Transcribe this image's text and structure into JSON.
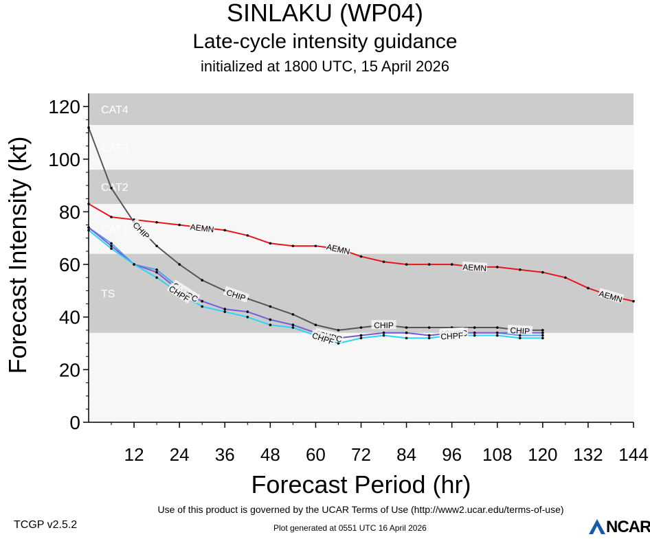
{
  "header": {
    "title": "SINLAKU (WP04)",
    "subtitle": "Late-cycle intensity guidance",
    "init": "initialized at 1800 UTC, 15 April 2026"
  },
  "footer": {
    "version": "TCGP v2.5.2",
    "terms": "Use of this product is governed by the UCAR Terms of Use (http://www2.ucar.edu/terms-of-use)",
    "generated": "Plot generated at 0551 UTC   16 April 2026",
    "logo": "NCAR"
  },
  "chart_data": {
    "type": "line",
    "xlabel": "Forecast Period (hr)",
    "ylabel": "Forecast Intensity (kt)",
    "xlim": [
      0,
      144
    ],
    "ylim": [
      0,
      125
    ],
    "xticks": [
      12,
      24,
      36,
      48,
      60,
      72,
      84,
      96,
      108,
      120,
      132,
      144
    ],
    "yticks": [
      0,
      20,
      40,
      60,
      80,
      100,
      120
    ],
    "grid": false,
    "bands": [
      {
        "label": "TS",
        "from": 34,
        "to": 64,
        "color": "#cccccc"
      },
      {
        "label": "CAT1",
        "from": 64,
        "to": 83,
        "color": "#f7f7f7"
      },
      {
        "label": "CAT2",
        "from": 83,
        "to": 96,
        "color": "#cccccc"
      },
      {
        "label": "CAT3",
        "from": 96,
        "to": 113,
        "color": "#f7f7f7"
      },
      {
        "label": "CAT4",
        "from": 113,
        "to": 125,
        "color": "#cccccc"
      }
    ],
    "background_color": "#f7f7f7",
    "series": [
      {
        "name": "AEMN",
        "color": "#e8141c",
        "x": [
          0,
          6,
          12,
          18,
          24,
          30,
          36,
          42,
          48,
          54,
          60,
          66,
          72,
          78,
          84,
          90,
          96,
          102,
          108,
          114,
          120,
          126,
          132,
          138,
          144
        ],
        "y": [
          83,
          78,
          77,
          76,
          75,
          74,
          73,
          71,
          68,
          67,
          67,
          66,
          63,
          61,
          60,
          60,
          60,
          59,
          59,
          58,
          57,
          55,
          51,
          48,
          46
        ]
      },
      {
        "name": "CHIP",
        "color": "#555555",
        "x": [
          0,
          6,
          12,
          18,
          24,
          30,
          36,
          42,
          48,
          54,
          60,
          66,
          72,
          78,
          84,
          90,
          96,
          102,
          108,
          114,
          120
        ],
        "y": [
          112,
          89,
          76,
          67,
          60,
          54,
          50,
          47,
          44,
          41,
          37,
          35,
          36,
          37,
          36,
          36,
          36,
          36,
          36,
          35,
          35
        ]
      },
      {
        "name": "CHPS",
        "color": "#5aa0e6",
        "x": [
          0,
          6,
          12,
          18,
          24,
          30,
          36,
          42,
          48,
          54,
          60,
          66,
          72,
          78,
          84,
          90,
          96,
          102,
          108,
          114,
          120
        ],
        "y": [
          74,
          68,
          60,
          58,
          51,
          46,
          43,
          42,
          39,
          37,
          34,
          32,
          33,
          34,
          34,
          33,
          34,
          34,
          34,
          33,
          33
        ]
      },
      {
        "name": "CHPC",
        "color": "#7a5fd6",
        "x": [
          0,
          6,
          12,
          18,
          24,
          30,
          36,
          42,
          48,
          54,
          60,
          66,
          72,
          78,
          84,
          90,
          96,
          102,
          108,
          114,
          120
        ],
        "y": [
          74,
          67,
          60,
          57,
          50,
          46,
          43,
          42,
          39,
          37,
          34,
          32,
          33,
          34,
          34,
          33,
          34,
          34,
          34,
          34,
          34
        ]
      },
      {
        "name": "CHPF",
        "color": "#2ad4f2",
        "x": [
          0,
          6,
          12,
          18,
          24,
          30,
          36,
          42,
          48,
          54,
          60,
          66,
          72,
          78,
          84,
          90,
          96,
          102,
          108,
          114,
          120
        ],
        "y": [
          73,
          66,
          60,
          55,
          49,
          44,
          42,
          40,
          37,
          36,
          33,
          30,
          32,
          33,
          32,
          32,
          33,
          33,
          33,
          32,
          32
        ]
      }
    ],
    "series_labels": [
      {
        "series": 0,
        "text": "AEMN",
        "x": [
          30,
          66,
          102,
          138
        ]
      },
      {
        "series": 1,
        "text": "CHIP",
        "x": [
          14,
          39,
          78,
          114
        ]
      },
      {
        "series": 2,
        "text": "CHPS",
        "x": [
          25,
          63,
          96
        ]
      },
      {
        "series": 3,
        "text": "CHPC",
        "x": [
          26,
          64,
          97
        ]
      },
      {
        "series": 4,
        "text": "CHPF",
        "x": [
          24,
          62,
          96
        ]
      }
    ]
  }
}
